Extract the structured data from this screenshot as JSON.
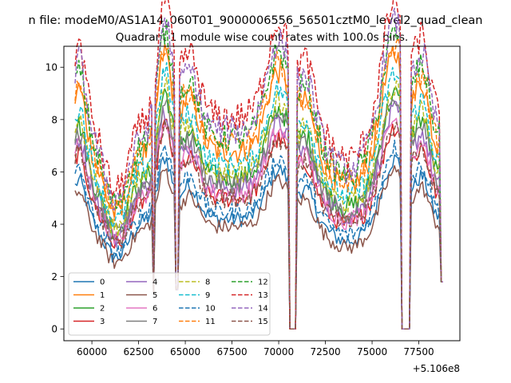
{
  "chart_data": {
    "type": "line",
    "suptitle": "n file: modeM0/AS1A14_060T01_9000006556_56501cztM0_level2_quad_clean",
    "title": "Quadrant 1 module wise count rates with 100.0s bins.",
    "xlabel": "",
    "ylabel": "",
    "x_offset_label": "+5.106e8",
    "x_offset": 510600000,
    "xlim": [
      58500,
      79700
    ],
    "ylim": [
      -0.45,
      10.8
    ],
    "xticks": [
      60000,
      62500,
      65000,
      67500,
      70000,
      72500,
      75000,
      77500
    ],
    "yticks": [
      0,
      2,
      4,
      6,
      8,
      10
    ],
    "grid": false,
    "legend": {
      "placement": "lower-left",
      "columns": 4
    },
    "bin_seconds": 100,
    "x_start": 59100,
    "x_end": 78800,
    "gaps": [
      {
        "start": 63300,
        "end": 63350,
        "value": 1.4
      },
      {
        "start": 64500,
        "end": 64600,
        "value": 1.5
      },
      {
        "start": 70550,
        "end": 70950,
        "value": 0
      },
      {
        "start": 76550,
        "end": 77050,
        "value": 0
      },
      {
        "start": 78700,
        "end": 78800,
        "value": 1.8
      }
    ],
    "series": [
      {
        "name": "0",
        "color": "#1f77b4",
        "style": "solid",
        "base": 4.2
      },
      {
        "name": "1",
        "color": "#ff7f0e",
        "style": "solid",
        "base": 6.8
      },
      {
        "name": "2",
        "color": "#2ca02c",
        "style": "solid",
        "base": 5.8
      },
      {
        "name": "3",
        "color": "#d62728",
        "style": "solid",
        "base": 5.0
      },
      {
        "name": "4",
        "color": "#9467bd",
        "style": "solid",
        "base": 5.4
      },
      {
        "name": "5",
        "color": "#8c564b",
        "style": "solid",
        "base": 3.9
      },
      {
        "name": "6",
        "color": "#e377c2",
        "style": "solid",
        "base": 5.2
      },
      {
        "name": "7",
        "color": "#7f7f7f",
        "style": "solid",
        "base": 5.6
      },
      {
        "name": "8",
        "color": "#bcbd22",
        "style": "dashed",
        "base": 6.0
      },
      {
        "name": "9",
        "color": "#17becf",
        "style": "dashed",
        "base": 6.3
      },
      {
        "name": "10",
        "color": "#1f77b4",
        "style": "dashed",
        "base": 4.5
      },
      {
        "name": "11",
        "color": "#ff7f0e",
        "style": "dashed",
        "base": 7.0
      },
      {
        "name": "12",
        "color": "#2ca02c",
        "style": "dashed",
        "base": 7.3
      },
      {
        "name": "13",
        "color": "#d62728",
        "style": "dashed",
        "base": 8.1
      },
      {
        "name": "14",
        "color": "#9467bd",
        "style": "dashed",
        "base": 7.6
      },
      {
        "name": "15",
        "color": "#8c564b",
        "style": "dashed",
        "base": 5.0
      }
    ]
  }
}
